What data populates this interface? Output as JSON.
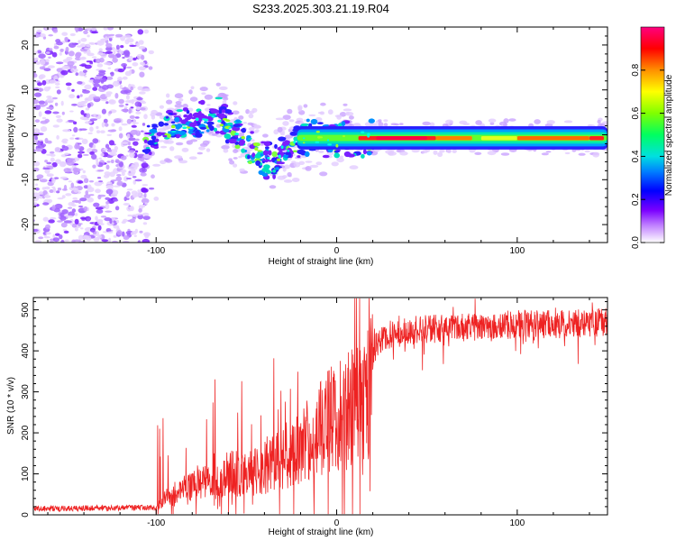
{
  "title": "S233.2025.303.21.19.R04",
  "chart_data": [
    {
      "type": "heatmap",
      "name": "spectrogram",
      "xlabel": "Height of straight line (km)",
      "ylabel": "Frequency (Hz)",
      "xlim": [
        -168,
        150
      ],
      "ylim": [
        -24,
        24
      ],
      "xticks": [
        -100,
        0,
        100
      ],
      "xtick_labels": [
        "-100",
        "0",
        "100"
      ],
      "yticks": [
        -20,
        -10,
        0,
        10,
        20
      ],
      "ytick_labels": [
        "-20",
        "-10",
        "0",
        "10",
        "20"
      ],
      "ridge": {
        "x": [
          -105,
          -95,
          -85,
          -75,
          -65,
          -55,
          -45,
          -35,
          -28,
          -20,
          -10,
          0,
          10,
          20,
          40,
          60,
          80,
          100,
          120,
          150
        ],
        "y": [
          -1.5,
          1.5,
          2.5,
          3,
          4,
          -0.5,
          -3,
          -7,
          -3,
          -1,
          -0.5,
          -1,
          -0.8,
          -0.8,
          -0.8,
          -0.8,
          -0.6,
          -0.6,
          -0.7,
          -0.7
        ]
      },
      "noise_region_x": [
        -168,
        -105
      ],
      "colorbar": {
        "label": "Normalized spectral amplitude",
        "range": [
          0,
          1
        ],
        "ticks": [
          0.0,
          0.2,
          0.4,
          0.6,
          0.8
        ],
        "tick_labels": [
          "0.0",
          "0.2",
          "0.4",
          "0.6",
          "0.8"
        ]
      }
    },
    {
      "type": "line",
      "name": "snr",
      "xlabel": "Height of straight line (km)",
      "ylabel": "SNR (10 * v/v)",
      "xlim": [
        -168,
        150
      ],
      "ylim": [
        0,
        530
      ],
      "xticks": [
        -100,
        0,
        100
      ],
      "xtick_labels": [
        "-100",
        "0",
        "100"
      ],
      "yticks": [
        0,
        100,
        200,
        300,
        400,
        500
      ],
      "ytick_labels": [
        "0",
        "100",
        "200",
        "300",
        "400",
        "500"
      ],
      "series_color": "#ee2222",
      "envelope": {
        "x": [
          -168,
          -100,
          -96,
          -90,
          -80,
          -70,
          -60,
          -50,
          -40,
          -30,
          -20,
          -15,
          -10,
          -5,
          0,
          5,
          10,
          15,
          20,
          25,
          30,
          40,
          60,
          80,
          100,
          120,
          150
        ],
        "y": [
          15,
          18,
          45,
          65,
          85,
          100,
          130,
          120,
          140,
          170,
          210,
          230,
          260,
          285,
          300,
          320,
          330,
          360,
          400,
          430,
          440,
          450,
          455,
          460,
          465,
          465,
          470
        ]
      }
    }
  ]
}
